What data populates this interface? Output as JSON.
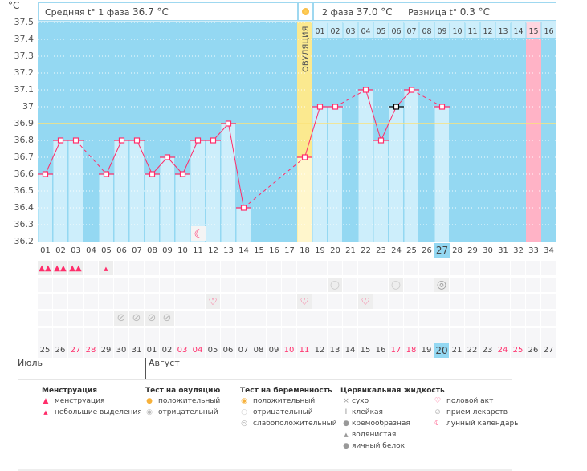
{
  "header": {
    "unit": "°C",
    "phase1_label": "Средняя t° 1 фаза",
    "phase1_value": "36.7 °C",
    "phase2_label": "2 фаза",
    "phase2_value": "37.0 °C",
    "diff_label": "Разница t°",
    "diff_value": "0.3 °C",
    "ovulation_label": "ОВУЛЯЦИЯ"
  },
  "colors": {
    "plot_bg": "#94d8f2",
    "bar": "#cdeefb",
    "line": "#ff2d6a",
    "coverline": "#fbe27a",
    "ovulation": "#fbe98f",
    "period_expected": "#ffb3c6",
    "highlight": "#94d8f2"
  },
  "chart_data": {
    "type": "line",
    "ylim": [
      36.2,
      37.5
    ],
    "yticks": [
      "37.5",
      "37.4",
      "37.3",
      "37.2",
      "37.1",
      "37",
      "36.9",
      "36.8",
      "36.7",
      "36.6",
      "36.5",
      "36.4",
      "36.3",
      "36.2"
    ],
    "cycle_days": [
      1,
      2,
      3,
      4,
      5,
      6,
      7,
      8,
      9,
      10,
      11,
      12,
      13,
      14,
      15,
      16,
      17,
      18,
      19,
      20,
      21,
      22,
      23,
      24,
      25,
      26,
      27,
      28,
      29,
      30,
      31,
      32,
      33,
      34
    ],
    "temperatures": [
      36.6,
      36.8,
      36.8,
      null,
      36.6,
      36.8,
      36.8,
      36.6,
      36.7,
      36.6,
      36.8,
      36.8,
      36.9,
      36.4,
      null,
      null,
      null,
      36.7,
      37.0,
      37.0,
      null,
      37.1,
      36.8,
      37.0,
      37.1,
      null,
      37.0,
      null,
      null,
      null,
      null,
      null,
      null,
      null
    ],
    "marked_black_day": 24,
    "coverline": 36.9,
    "ovulation_day": 18,
    "luteal_day_labels": [
      "01",
      "02",
      "03",
      "04",
      "05",
      "06",
      "07",
      "08",
      "09",
      "10",
      "11",
      "12",
      "13",
      "14",
      "15",
      "16"
    ],
    "expected_period_day": 33,
    "today_day": 27,
    "moon_day": 11,
    "grid": true
  },
  "calendar": {
    "dates": [
      "25",
      "26",
      "27",
      "28",
      "29",
      "30",
      "31",
      "01",
      "02",
      "03",
      "04",
      "05",
      "06",
      "07",
      "08",
      "09",
      "10",
      "11",
      "12",
      "13",
      "14",
      "15",
      "16",
      "17",
      "18",
      "19",
      "20",
      "21",
      "22",
      "23",
      "24",
      "25",
      "26",
      "27"
    ],
    "weekend_indices": [
      2,
      3,
      9,
      10,
      16,
      17,
      23,
      24,
      30,
      31
    ],
    "months": [
      "Июль",
      "Август"
    ]
  },
  "markers": {
    "menstruation_heavy": [
      1,
      2,
      3
    ],
    "menstruation_light": [
      5
    ],
    "pregnancy_negative": [
      20,
      24
    ],
    "pregnancy_weak": [
      27
    ],
    "intercourse": [
      12,
      18,
      22
    ],
    "medication": [
      6,
      7,
      8,
      9
    ]
  },
  "legend": {
    "menstruation": {
      "title": "Менструация",
      "items": [
        "менструация",
        "небольшие выделения"
      ]
    },
    "ovulation_test": {
      "title": "Тест на овуляцию",
      "items": [
        "положительный",
        "отрицательный"
      ]
    },
    "pregnancy_test": {
      "title": "Тест на беременность",
      "items": [
        "положительный",
        "отрицательный",
        "слабоположительный"
      ]
    },
    "cervical": {
      "title": "Цервикальная жидкость",
      "items": [
        "сухо",
        "клейкая",
        "кремообразная",
        "водянистая",
        "яичный белок"
      ]
    },
    "other": {
      "items": [
        "половой акт",
        "прием лекарств",
        "лунный календарь"
      ]
    }
  }
}
